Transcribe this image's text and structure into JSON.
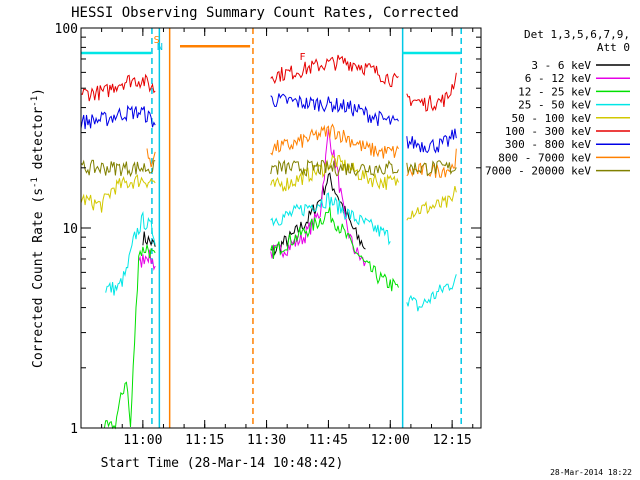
{
  "chart_data": {
    "type": "line",
    "title": "HESSI Observing Summary Count Rates, Corrected",
    "xlabel": "Start Time (28-Mar-14 10:48:42)",
    "ylabel": "Corrected Count Rate (s⁻¹ detector⁻¹)",
    "ylabel_main": "Corrected Count Rate (s",
    "ylabel_sup1": "-1",
    "ylabel_mid": " detector",
    "ylabel_sup2": "-1",
    "ylabel_end": ")",
    "y_scale": "log",
    "ylim": [
      1,
      100
    ],
    "xlim_minutes": [
      -3,
      94
    ],
    "x_ticks": [
      {
        "label": "11:00",
        "minute": 12
      },
      {
        "label": "11:15",
        "minute": 27
      },
      {
        "label": "11:30",
        "minute": 42
      },
      {
        "label": "11:45",
        "minute": 57
      },
      {
        "label": "12:00",
        "minute": 72
      },
      {
        "label": "12:15",
        "minute": 87
      }
    ],
    "y_ticks": [
      {
        "label": "1",
        "value": 1
      },
      {
        "label": "10",
        "value": 10
      },
      {
        "label": "100",
        "value": 100
      }
    ],
    "legend": {
      "placement": "right",
      "header_line1": "Det 1,3,5,6,7,9,",
      "header_line2": "Att 0",
      "entries": [
        {
          "label": "3 - 6 keV",
          "color": "#000000"
        },
        {
          "label": "6 - 12 keV",
          "color": "#e600e6"
        },
        {
          "label": "12 - 25 keV",
          "color": "#00e000"
        },
        {
          "label": "25 - 50 keV",
          "color": "#00e6e6"
        },
        {
          "label": "50 - 100 keV",
          "color": "#d2c800"
        },
        {
          "label": "100 - 300 keV",
          "color": "#e60000"
        },
        {
          "label": "300 - 800 keV",
          "color": "#0000e6"
        },
        {
          "label": "800 - 7000 keV",
          "color": "#ff8000"
        },
        {
          "label": "7000 - 20000 keV",
          "color": "#808000"
        }
      ]
    },
    "flags": [
      {
        "label": "S",
        "color": "#ff8000"
      },
      {
        "label": "N",
        "color": "#00c8e6"
      },
      {
        "label": "F",
        "color": "#e60000"
      }
    ],
    "series": [
      {
        "name": "3 - 6 keV",
        "color": "#000000",
        "segments": [
          [
            [
              12,
              9
            ],
            [
              14,
              8.5
            ],
            [
              15,
              8
            ]
          ],
          [
            [
              43,
              7.5
            ],
            [
              48,
              9
            ],
            [
              52,
              11
            ],
            [
              55,
              14
            ],
            [
              57,
              18
            ],
            [
              59,
              15
            ],
            [
              61,
              12
            ],
            [
              64,
              9
            ],
            [
              66,
              8
            ]
          ]
        ]
      },
      {
        "name": "6 - 12 keV",
        "color": "#e600e6",
        "segments": [
          [
            [
              11,
              6.5
            ],
            [
              13,
              7.5
            ],
            [
              15,
              6.5
            ]
          ],
          [
            [
              43,
              7.5
            ],
            [
              47,
              8
            ],
            [
              51,
              9
            ],
            [
              55,
              12
            ],
            [
              57,
              30
            ],
            [
              59,
              20
            ],
            [
              61,
              11
            ],
            [
              63,
              8
            ],
            [
              66,
              6.5
            ]
          ]
        ]
      },
      {
        "name": "12 - 25 keV",
        "color": "#00e000",
        "segments": [
          [
            [
              2,
              1
            ],
            [
              5,
              1
            ],
            [
              8,
              1.8
            ],
            [
              9,
              1
            ],
            [
              11,
              7.5
            ],
            [
              13,
              8
            ],
            [
              15,
              7
            ]
          ],
          [
            [
              43,
              7.5
            ],
            [
              47,
              8.5
            ],
            [
              51,
              9.5
            ],
            [
              55,
              11
            ],
            [
              57,
              12
            ],
            [
              60,
              10
            ],
            [
              63,
              8
            ],
            [
              66,
              6.5
            ],
            [
              70,
              5.5
            ],
            [
              74,
              5
            ]
          ]
        ]
      },
      {
        "name": "25 - 50 keV",
        "color": "#00e6e6",
        "segments": [
          [
            [
              -3,
              75
            ],
            [
              14,
              75
            ]
          ],
          [
            [
              3,
              5
            ],
            [
              6,
              5
            ],
            [
              8,
              6
            ],
            [
              10,
              9
            ],
            [
              12,
              11
            ],
            [
              14,
              10
            ],
            [
              15,
              9
            ]
          ],
          [
            [
              43,
              11
            ],
            [
              47,
              11.5
            ],
            [
              51,
              12.5
            ],
            [
              55,
              13.5
            ],
            [
              57,
              14
            ],
            [
              60,
              12.5
            ],
            [
              64,
              11
            ],
            [
              68,
              10
            ],
            [
              72,
              9
            ]
          ],
          [
            [
              76,
              4.5
            ],
            [
              79,
              4
            ],
            [
              82,
              4.5
            ],
            [
              85,
              5
            ],
            [
              88,
              5.5
            ]
          ],
          [
            [
              75,
              75
            ],
            [
              89,
              75
            ]
          ]
        ]
      },
      {
        "name": "50 - 100 keV",
        "color": "#d2c800",
        "segments": [
          [
            [
              -3,
              14
            ],
            [
              2,
              13
            ],
            [
              5,
              16
            ],
            [
              9,
              17
            ],
            [
              12,
              17.5
            ],
            [
              15,
              17
            ]
          ],
          [
            [
              43,
              16
            ],
            [
              48,
              17
            ],
            [
              52,
              18.5
            ],
            [
              56,
              20
            ],
            [
              58,
              22
            ],
            [
              62,
              20
            ],
            [
              66,
              18
            ],
            [
              70,
              17
            ],
            [
              74,
              17
            ]
          ],
          [
            [
              76,
              12
            ],
            [
              80,
              12.5
            ],
            [
              84,
              13
            ],
            [
              87,
              13.5
            ],
            [
              88,
              16
            ]
          ]
        ]
      },
      {
        "name": "100 - 300 keV",
        "color": "#e60000",
        "segments": [
          [
            [
              -3,
              47
            ],
            [
              3,
              48
            ],
            [
              6,
              53
            ],
            [
              9,
              55
            ],
            [
              12,
              55
            ],
            [
              14,
              51
            ],
            [
              15,
              49
            ]
          ],
          [
            [
              43,
              58
            ],
            [
              48,
              60
            ],
            [
              52,
              63
            ],
            [
              56,
              66
            ],
            [
              60,
              68
            ],
            [
              64,
              66
            ],
            [
              68,
              61
            ],
            [
              72,
              56
            ],
            [
              74,
              53
            ]
          ],
          [
            [
              76,
              45
            ],
            [
              80,
              42
            ],
            [
              84,
              43
            ],
            [
              86,
              45
            ],
            [
              88,
              58
            ]
          ]
        ]
      },
      {
        "name": "300 - 800 keV",
        "color": "#0000e6",
        "segments": [
          [
            [
              -3,
              34
            ],
            [
              3,
              35
            ],
            [
              6,
              37
            ],
            [
              9,
              38
            ],
            [
              12,
              38
            ],
            [
              14,
              35
            ],
            [
              15,
              33
            ]
          ],
          [
            [
              43,
              44
            ],
            [
              48,
              43
            ],
            [
              52,
              42
            ],
            [
              56,
              42
            ],
            [
              60,
              41
            ],
            [
              64,
              39
            ],
            [
              68,
              36
            ],
            [
              72,
              34
            ],
            [
              74,
              33
            ]
          ],
          [
            [
              76,
              27
            ],
            [
              80,
              26
            ],
            [
              84,
              26
            ],
            [
              86,
              27
            ],
            [
              88,
              30
            ]
          ]
        ]
      },
      {
        "name": "800 - 7000 keV",
        "color": "#ff8000",
        "segments": [
          [
            [
              13,
              23
            ],
            [
              14,
              22
            ],
            [
              15,
              23
            ]
          ],
          [
            [
              21,
              81
            ],
            [
              38,
              81
            ]
          ],
          [
            [
              43,
              25
            ],
            [
              48,
              26
            ],
            [
              52,
              28
            ],
            [
              56,
              30
            ],
            [
              58,
              31
            ],
            [
              62,
              28
            ],
            [
              66,
              25
            ],
            [
              70,
              24
            ],
            [
              74,
              24
            ]
          ],
          [
            [
              76,
              19
            ],
            [
              80,
              19.5
            ],
            [
              84,
              19.5
            ],
            [
              87,
              20
            ],
            [
              88,
              23
            ]
          ]
        ]
      },
      {
        "name": "7000 - 20000 keV",
        "color": "#808000",
        "segments": [
          [
            [
              -3,
              20
            ],
            [
              1,
              20
            ],
            [
              4,
              20
            ],
            [
              8,
              20
            ],
            [
              12,
              20
            ],
            [
              15,
              20
            ]
          ],
          [
            [
              43,
              20
            ],
            [
              52,
              20
            ],
            [
              60,
              20
            ],
            [
              68,
              20
            ],
            [
              74,
              20
            ]
          ],
          [
            [
              76,
              20
            ],
            [
              82,
              20
            ],
            [
              88,
              20
            ]
          ]
        ]
      }
    ],
    "vertical_lines": [
      {
        "minute": 14.2,
        "color": "#00c8e6",
        "dash": true
      },
      {
        "minute": 16.0,
        "color": "#00c8e6",
        "dash": false
      },
      {
        "minute": 18.5,
        "color": "#ff8000",
        "dash": false
      },
      {
        "minute": 38.7,
        "color": "#ff8000",
        "dash": true
      },
      {
        "minute": 75.0,
        "color": "#00c8e6",
        "dash": false
      },
      {
        "minute": 89.2,
        "color": "#00c8e6",
        "dash": true
      }
    ],
    "footer_date": "28-Mar-2014 18:22"
  }
}
